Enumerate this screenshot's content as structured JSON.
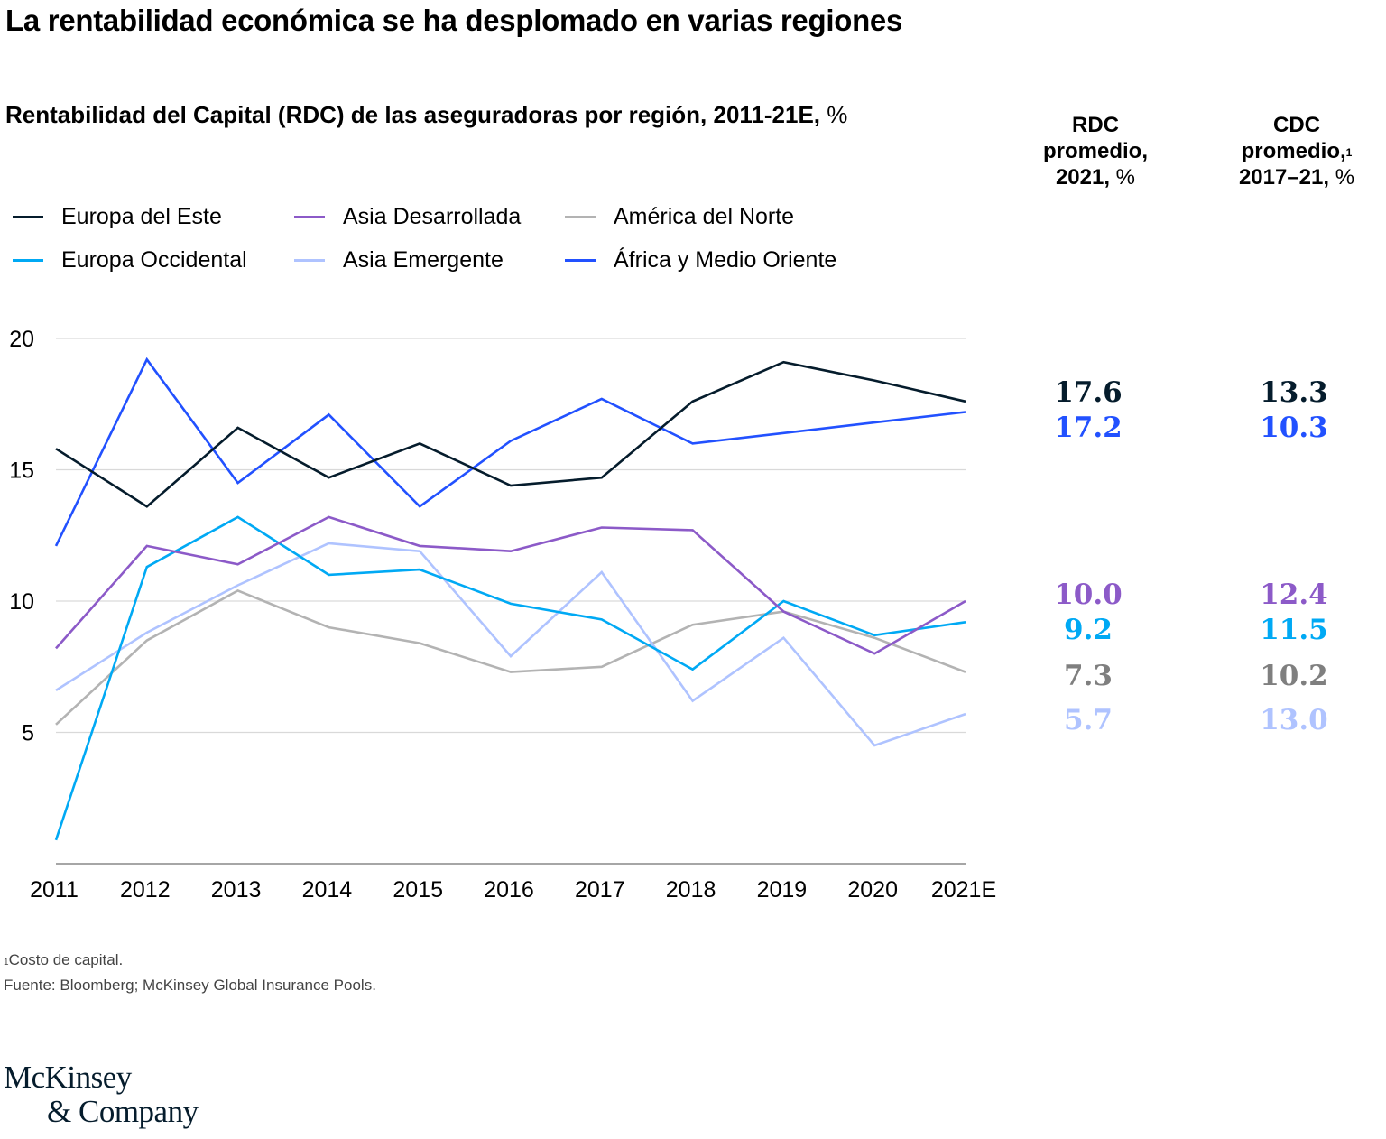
{
  "header": {
    "title": "La rentabilidad económica se ha desplomado en varias regiones",
    "subtitle_bold": "Rentabilidad del Capital (RDC) de las aseguradoras por región, 2011-21E,",
    "subtitle_unit": " %"
  },
  "columns": {
    "rdc": {
      "line1": "RDC",
      "line2": "promedio,",
      "line3_bold": "2021,",
      "line3_unit": " %"
    },
    "cdc": {
      "line1": "CDC",
      "line2": "promedio,",
      "line2_sup": "1",
      "line3_bold": "2017–21,",
      "line3_unit": " %"
    }
  },
  "chart_data": {
    "type": "line",
    "title": "Rentabilidad del Capital (RDC) de las aseguradoras por región, 2011-21E, %",
    "xlabel": "",
    "ylabel": "%",
    "x": [
      "2011",
      "2012",
      "2013",
      "2014",
      "2015",
      "2016",
      "2017",
      "2018",
      "2019",
      "2020",
      "2021E"
    ],
    "yticks": [
      5,
      10,
      15,
      20
    ],
    "ylim": [
      0,
      20
    ],
    "grid": true,
    "legend_position": "top-left",
    "series": [
      {
        "name": "Europa del Este",
        "color": "#051c2c",
        "values": [
          15.8,
          13.6,
          16.6,
          14.7,
          16.0,
          14.4,
          14.7,
          17.6,
          19.1,
          18.4,
          17.6
        ],
        "rdc_2021": "17.6",
        "cdc_2017_21": "13.3",
        "text_color": "#051c2c"
      },
      {
        "name": "Europa Occidental",
        "color": "#00a9f4",
        "values": [
          0.9,
          11.3,
          13.2,
          11.0,
          11.2,
          9.9,
          9.3,
          7.4,
          10.0,
          8.7,
          9.2
        ],
        "rdc_2021": "9.2",
        "cdc_2017_21": "11.5",
        "text_color": "#00a9f4"
      },
      {
        "name": "Asia Desarrollada",
        "color": "#8c5ac8",
        "values": [
          8.2,
          12.1,
          11.4,
          13.2,
          12.1,
          11.9,
          12.8,
          12.7,
          9.6,
          8.0,
          10.0
        ],
        "rdc_2021": "10.0",
        "cdc_2017_21": "12.4",
        "text_color": "#8c5ac8"
      },
      {
        "name": "Asia Emergente",
        "color": "#afc3ff",
        "values": [
          6.6,
          8.8,
          10.6,
          12.2,
          11.9,
          7.9,
          11.1,
          6.2,
          8.6,
          4.5,
          5.7
        ],
        "rdc_2021": "5.7",
        "cdc_2017_21": "13.0",
        "text_color": "#afc3ff"
      },
      {
        "name": "América del Norte",
        "color": "#b3b3b3",
        "values": [
          5.3,
          8.5,
          10.4,
          9.0,
          8.4,
          7.3,
          7.5,
          9.1,
          9.6,
          8.6,
          7.3
        ],
        "rdc_2021": "7.3",
        "cdc_2017_21": "10.2",
        "text_color": "#7f7f7f"
      },
      {
        "name": "África y Medio Oriente",
        "color": "#2251ff",
        "values": [
          12.1,
          19.2,
          14.5,
          17.1,
          13.6,
          16.1,
          17.7,
          16.0,
          16.4,
          16.8,
          17.2
        ],
        "rdc_2021": "17.2",
        "cdc_2017_21": "10.3",
        "text_color": "#2251ff"
      }
    ]
  },
  "legend": [
    {
      "label": "Europa del Este",
      "color": "#051c2c"
    },
    {
      "label": "Asia Desarrollada",
      "color": "#8c5ac8"
    },
    {
      "label": "América del Norte",
      "color": "#b3b3b3"
    },
    {
      "label": "Europa Occidental",
      "color": "#00a9f4"
    },
    {
      "label": "Asia Emergente",
      "color": "#afc3ff"
    },
    {
      "label": "África y Medio Oriente",
      "color": "#2251ff"
    }
  ],
  "footnote": {
    "sup": "1",
    "note": "Costo de capital.",
    "source": "Fuente: Bloomberg; McKinsey Global Insurance Pools."
  },
  "logo": {
    "line1": "McKinsey",
    "line2": "& Company"
  }
}
